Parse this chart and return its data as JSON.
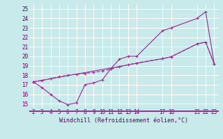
{
  "background_color": "#c8eaea",
  "grid_color": "#ffffff",
  "line_color": "#993399",
  "sep_color": "#993399",
  "xlabel": "Windchill (Refroidissement éolien,°C)",
  "ylim": [
    14.5,
    25.5
  ],
  "xlim": [
    1.5,
    23.5
  ],
  "yticks": [
    15,
    16,
    17,
    18,
    19,
    20,
    21,
    22,
    23,
    24,
    25
  ],
  "xtick_positions": [
    2,
    3,
    4,
    5,
    6,
    7,
    8,
    9,
    10,
    11,
    12,
    13,
    14,
    17,
    18,
    21,
    22,
    23
  ],
  "xtick_labels": [
    "2",
    "3",
    "4",
    "5",
    "6",
    "7",
    "8",
    "9",
    "10",
    "11",
    "12",
    "13",
    "14",
    "17",
    "18",
    "21",
    "22",
    "23"
  ],
  "line1_x": [
    2,
    3,
    4,
    5,
    6,
    7,
    8,
    9,
    10,
    11,
    12,
    13,
    14,
    17,
    18,
    21,
    22,
    23
  ],
  "line1_y": [
    17.3,
    16.7,
    16.0,
    15.3,
    14.9,
    15.1,
    17.0,
    17.2,
    17.5,
    18.7,
    19.7,
    20.0,
    20.0,
    22.7,
    23.0,
    24.0,
    24.7,
    19.2
  ],
  "line2_x": [
    2,
    3,
    4,
    5,
    6,
    7,
    8,
    9,
    10,
    11,
    12,
    13,
    14,
    17,
    18,
    21,
    22,
    23
  ],
  "line2_y": [
    17.3,
    17.45,
    17.65,
    17.85,
    18.0,
    18.1,
    18.2,
    18.3,
    18.45,
    18.65,
    18.9,
    19.1,
    19.3,
    19.75,
    19.95,
    21.3,
    21.5,
    19.2
  ],
  "line3_x": [
    2,
    17,
    18,
    21,
    22,
    23
  ],
  "line3_y": [
    17.3,
    19.75,
    19.95,
    21.3,
    21.5,
    19.2
  ],
  "tick_fontsize": 5.5,
  "label_fontsize": 6.0,
  "tick_color": "#660066",
  "lw": 0.85,
  "ms": 2.5,
  "mew": 0.8
}
